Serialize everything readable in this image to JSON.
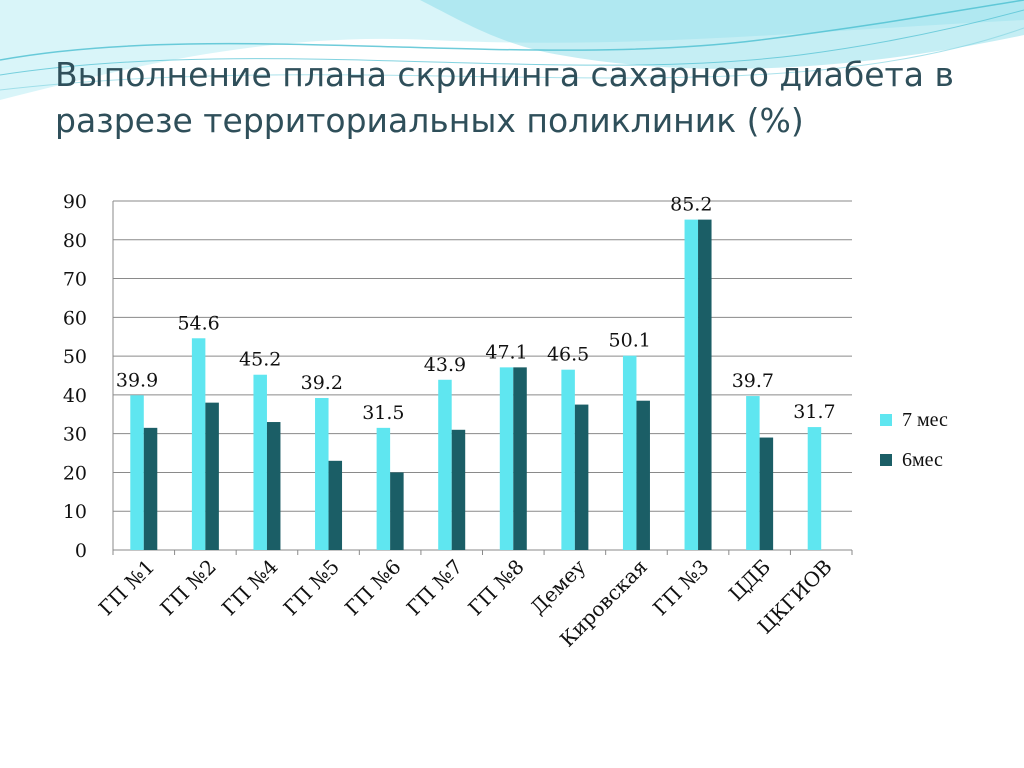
{
  "slide": {
    "title": "Выполнение плана скрининга сахарного диабета в разрезе территориальных поликлиник (%)"
  },
  "colors": {
    "series_7": "#5fe6f0",
    "series_6": "#1b5e66",
    "grid": "#8a8a8a",
    "deco": "#64c8d8"
  },
  "chart_data": {
    "type": "bar",
    "categories": [
      "ГП №1",
      "ГП №2",
      "ГП №4",
      "ГП №5",
      "ГП №6",
      "ГП  №7",
      "ГП №8",
      "Демеу",
      "Кировская",
      "ГП №3",
      "ЦДБ",
      "ЦКГИОВ"
    ],
    "series": [
      {
        "name": "7 мес",
        "values": [
          39.9,
          54.6,
          45.2,
          39.2,
          31.5,
          43.9,
          47.1,
          46.5,
          50.1,
          85.2,
          39.7,
          31.7
        ]
      },
      {
        "name": "6мес",
        "values": [
          31.5,
          38,
          33,
          23,
          20,
          31,
          47.1,
          37.5,
          38.5,
          85.2,
          29,
          null
        ]
      }
    ],
    "data_labels": [
      "39.9",
      "54.6",
      "45.2",
      "39.2",
      "31.5",
      "43.9",
      "47.1",
      "46.5",
      "50.1",
      "85.2",
      "39.7",
      "31.7"
    ],
    "yticks": [
      "0",
      "10",
      "20",
      "30",
      "40",
      "50",
      "60",
      "70",
      "80",
      "90"
    ],
    "ylim": [
      0,
      90
    ],
    "grid": true,
    "legend_position": "right",
    "xtick_rotation": "-45deg"
  }
}
